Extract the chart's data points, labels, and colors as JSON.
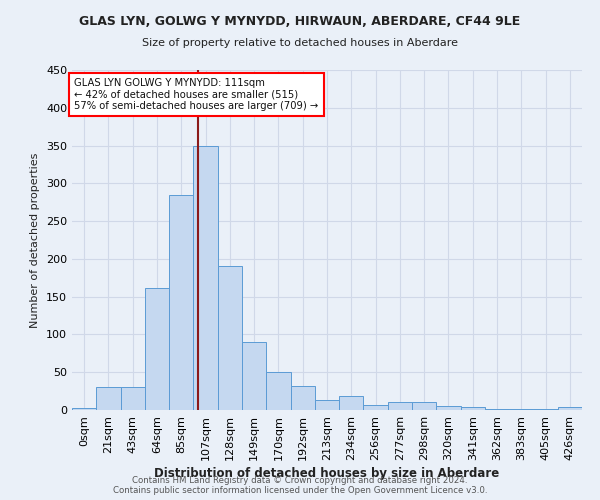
{
  "title1": "GLAS LYN, GOLWG Y MYNYDD, HIRWAUN, ABERDARE, CF44 9LE",
  "title2": "Size of property relative to detached houses in Aberdare",
  "xlabel": "Distribution of detached houses by size in Aberdare",
  "ylabel": "Number of detached properties",
  "footer1": "Contains HM Land Registry data © Crown copyright and database right 2024.",
  "footer2": "Contains public sector information licensed under the Open Government Licence v3.0.",
  "bin_labels": [
    "0sqm",
    "21sqm",
    "43sqm",
    "64sqm",
    "85sqm",
    "107sqm",
    "128sqm",
    "149sqm",
    "170sqm",
    "192sqm",
    "213sqm",
    "234sqm",
    "256sqm",
    "277sqm",
    "298sqm",
    "320sqm",
    "341sqm",
    "362sqm",
    "383sqm",
    "405sqm",
    "426sqm"
  ],
  "bar_heights": [
    3,
    30,
    30,
    162,
    285,
    350,
    191,
    90,
    50,
    32,
    13,
    19,
    7,
    10,
    11,
    5,
    4,
    1,
    1,
    1,
    4
  ],
  "bar_color": "#c5d8f0",
  "bar_edge_color": "#5b9bd5",
  "grid_color": "#d0d8e8",
  "background_color": "#eaf0f8",
  "property_sqm": 111,
  "property_label": "GLAS LYN GOLWG Y MYNYDD: 111sqm",
  "annotation_line1": "← 42% of detached houses are smaller (515)",
  "annotation_line2": "57% of semi-detached houses are larger (709) →",
  "annotation_box_color": "white",
  "annotation_border_color": "red",
  "vline_color": "#8b1a1a",
  "ylim": [
    0,
    450
  ],
  "yticks": [
    0,
    50,
    100,
    150,
    200,
    250,
    300,
    350,
    400,
    450
  ]
}
